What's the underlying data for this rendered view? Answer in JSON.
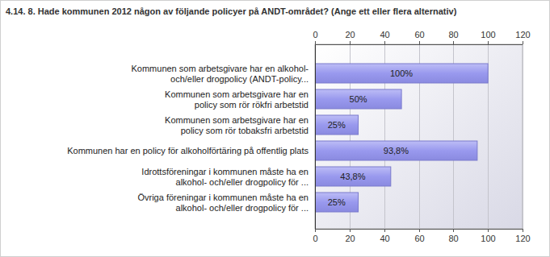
{
  "chart_data": {
    "type": "bar",
    "orientation": "horizontal",
    "title": "4.14. 8. Hade kommunen 2012 någon av följande policyer på ANDT-området? (Ange ett eller flera alternativ)",
    "categories": [
      "Kommunen som arbetsgivare har en alkohol-\noch/eller drogpolicy (ANDT-policy...",
      "Kommunen som arbetsgivare har en\npolicy som rör rökfri arbetstid",
      "Kommunen som arbetsgivare har en\npolicy som rör tobaksfri arbetstid",
      "Kommunen har en policy för alkoholförtäring på offentlig plats",
      "Idrottsföreningar i kommunen måste ha en\nalkohol- och/eller drogpolicy för ...",
      "Övriga föreningar i kommunen måste ha en\nalkohol- och/eller drogpolicy för ..."
    ],
    "values": [
      100,
      50,
      25,
      93.8,
      43.8,
      25
    ],
    "value_labels": [
      "100%",
      "50%",
      "25%",
      "93,8%",
      "43,8%",
      "25%"
    ],
    "color": "#9999ee",
    "xlim": [
      0,
      120
    ],
    "xticks": [
      0,
      20,
      40,
      60,
      80,
      100,
      120
    ],
    "grid": true,
    "data_labels": true
  }
}
